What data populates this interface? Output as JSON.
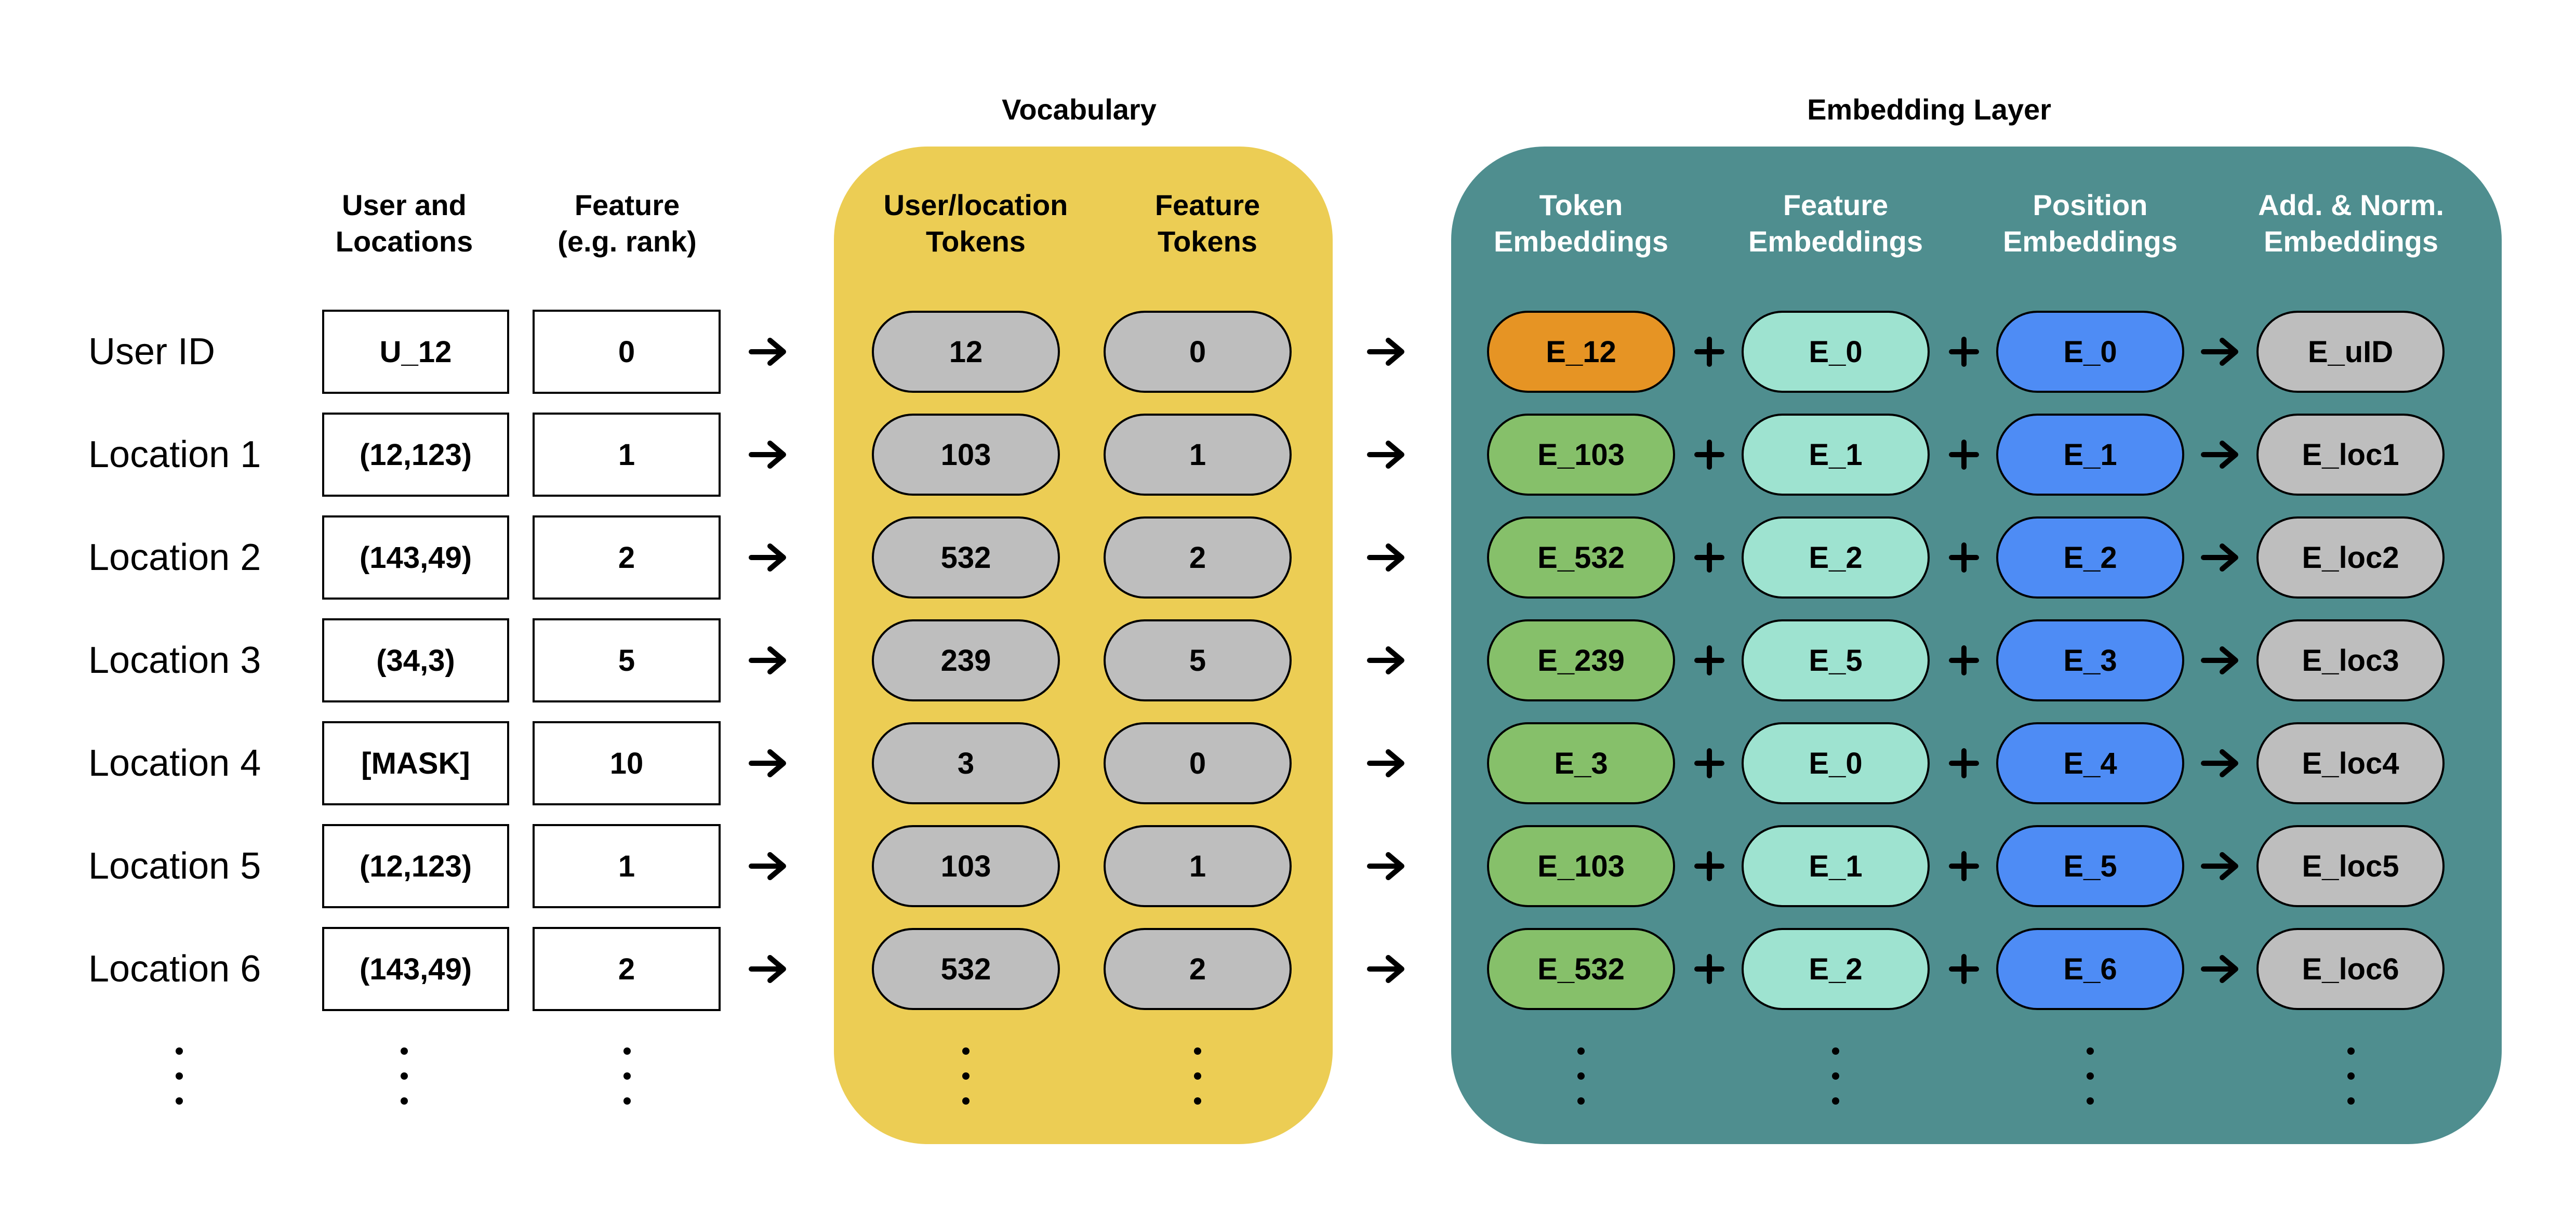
{
  "colors": {
    "vocabulary_panel": "#ECCD54",
    "embedding_panel": "#4F8E8F",
    "token_pill": "#BEBEBE",
    "user_token_embedding": "#E69424",
    "location_token_embedding": "#86C06A",
    "feature_embedding": "#9EE3D0",
    "position_embedding": "#4E8CF5",
    "output_embedding": "#BEBEBE"
  },
  "panels": {
    "vocabulary": {
      "title": "Vocabulary"
    },
    "embedding": {
      "title": "Embedding Layer"
    }
  },
  "columns": {
    "user_locations": [
      "User and",
      "Locations"
    ],
    "feature": [
      "Feature",
      "(e.g. rank)"
    ],
    "location_tokens": [
      "User/location",
      "Tokens"
    ],
    "feature_tokens": [
      "Feature",
      "Tokens"
    ],
    "token_embeddings": [
      "Token",
      "Embeddings"
    ],
    "feature_embeddings": [
      "Feature",
      "Embeddings"
    ],
    "position_embeddings": [
      "Position",
      "Embeddings"
    ],
    "output_embeddings": [
      "Add. & Norm.",
      "Embeddings"
    ]
  },
  "rows": [
    {
      "label": "User ID",
      "input": "U_12",
      "feature": "0",
      "token": "12",
      "feature_token": "0",
      "token_emb": "E_12",
      "feature_emb": "E_0",
      "position_emb": "E_0",
      "output_emb": "E_uID",
      "token_emb_kind": "user"
    },
    {
      "label": "Location 1",
      "input": "(12,123)",
      "feature": "1",
      "token": "103",
      "feature_token": "1",
      "token_emb": "E_103",
      "feature_emb": "E_1",
      "position_emb": "E_1",
      "output_emb": "E_loc1",
      "token_emb_kind": "location"
    },
    {
      "label": "Location 2",
      "input": "(143,49)",
      "feature": "2",
      "token": "532",
      "feature_token": "2",
      "token_emb": "E_532",
      "feature_emb": "E_2",
      "position_emb": "E_2",
      "output_emb": "E_loc2",
      "token_emb_kind": "location"
    },
    {
      "label": "Location 3",
      "input": "(34,3)",
      "feature": "5",
      "token": "239",
      "feature_token": "5",
      "token_emb": "E_239",
      "feature_emb": "E_5",
      "position_emb": "E_3",
      "output_emb": "E_loc3",
      "token_emb_kind": "location"
    },
    {
      "label": "Location 4",
      "input": "[MASK]",
      "feature": "10",
      "token": "3",
      "feature_token": "0",
      "token_emb": "E_3",
      "feature_emb": "E_0",
      "position_emb": "E_4",
      "output_emb": "E_loc4",
      "token_emb_kind": "location"
    },
    {
      "label": "Location 5",
      "input": "(12,123)",
      "feature": "1",
      "token": "103",
      "feature_token": "1",
      "token_emb": "E_103",
      "feature_emb": "E_1",
      "position_emb": "E_5",
      "output_emb": "E_loc5",
      "token_emb_kind": "location"
    },
    {
      "label": "Location 6",
      "input": "(143,49)",
      "feature": "2",
      "token": "532",
      "feature_token": "2",
      "token_emb": "E_532",
      "feature_emb": "E_2",
      "position_emb": "E_6",
      "output_emb": "E_loc6",
      "token_emb_kind": "location"
    }
  ],
  "icons": {
    "arrow": "right-arrow-icon",
    "plus": "plus-icon",
    "ellipsis": "vertical-ellipsis-icon"
  }
}
